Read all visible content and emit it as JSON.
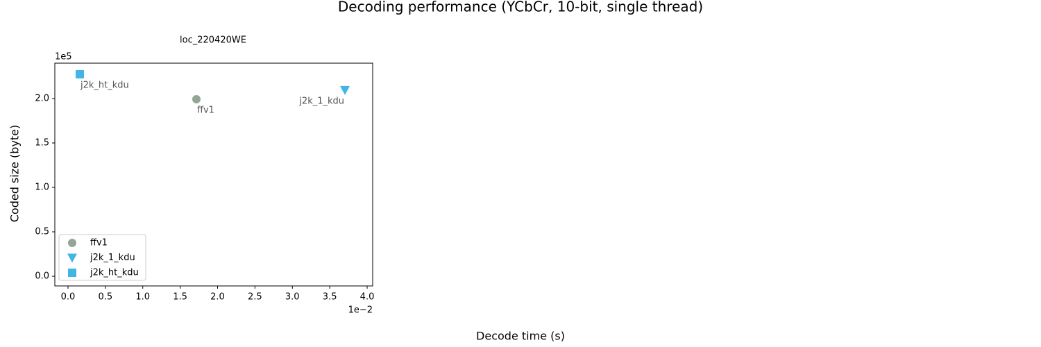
{
  "chart_data": {
    "type": "scatter",
    "title": "Decoding performance (YCbCr, 10-bit, single thread)",
    "subtitle": "loc_220420WE",
    "x_label": "Decode time (s)",
    "y_label": "Coded size (byte)",
    "x_offset_label": "1e−2",
    "y_offset_label": "1e5",
    "xlim": [
      -0.00176,
      0.04074
    ],
    "ylim": [
      -10900,
      239800
    ],
    "xticks": [
      {
        "value": 0,
        "label": "0.0"
      },
      {
        "value": 0.005,
        "label": "0.5"
      },
      {
        "value": 0.01,
        "label": "1.0"
      },
      {
        "value": 0.015,
        "label": "1.5"
      },
      {
        "value": 0.02,
        "label": "2.0"
      },
      {
        "value": 0.025,
        "label": "2.5"
      },
      {
        "value": 0.03,
        "label": "3.0"
      },
      {
        "value": 0.035,
        "label": "3.5"
      },
      {
        "value": 0.04,
        "label": "4.0"
      }
    ],
    "yticks": [
      {
        "value": 0,
        "label": "0.0"
      },
      {
        "value": 50000,
        "label": "0.5"
      },
      {
        "value": 100000,
        "label": "1.0"
      },
      {
        "value": 150000,
        "label": "1.5"
      },
      {
        "value": 200000,
        "label": "2.0"
      }
    ],
    "legend": "lower left",
    "series": [
      {
        "name": "ffv1",
        "color": "#93a594",
        "marker": "circle",
        "x": [
          0.01717
        ],
        "values": [
          199200
        ]
      },
      {
        "name": "j2k_1_kdu",
        "color": "#41b6e6",
        "marker": "triangle-down",
        "x": [
          0.03703
        ],
        "values": [
          209400
        ]
      },
      {
        "name": "j2k_ht_kdu",
        "color": "#41b6e6",
        "marker": "square",
        "x": [
          0.00158
        ],
        "values": [
          227300
        ]
      }
    ]
  }
}
